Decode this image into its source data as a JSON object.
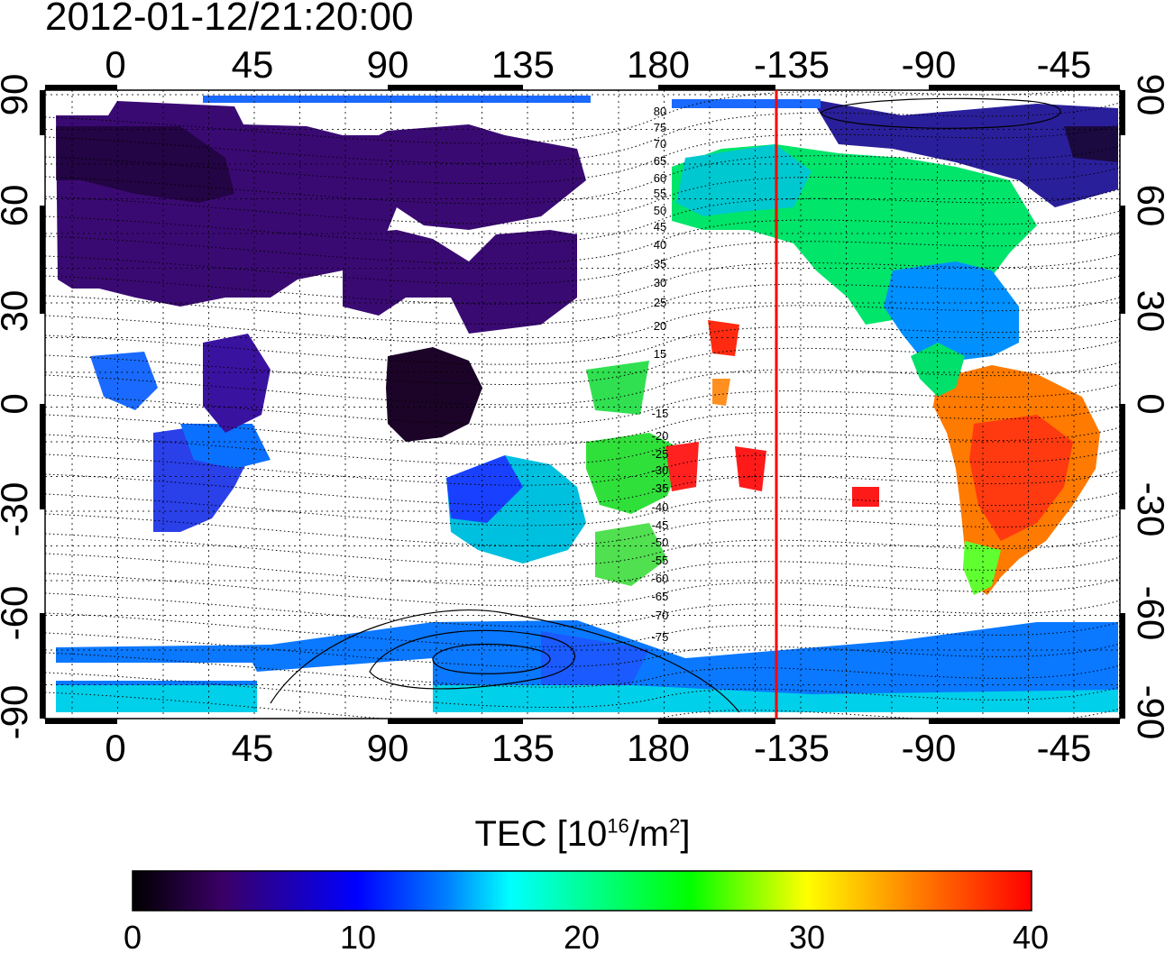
{
  "title": "2012-01-12/21:20:00",
  "map": {
    "top_lon_ticks": [
      "0",
      "45",
      "90",
      "135",
      "180",
      "-135",
      "-90",
      "-45"
    ],
    "bottom_lon_ticks": [
      "0",
      "45",
      "90",
      "135",
      "180",
      "-135",
      "-90",
      "-45"
    ],
    "left_lat_ticks": [
      "90",
      "60",
      "30",
      "0",
      "-30",
      "-60",
      "-90"
    ],
    "right_lat_ticks": [
      "90",
      "60",
      "30",
      "0",
      "-30",
      "-60",
      "-90"
    ],
    "contour_labels": [
      "80",
      "75",
      "70",
      "65",
      "60",
      "55",
      "50",
      "45",
      "40",
      "35",
      "30",
      "25",
      "20",
      "15",
      "-15",
      "-20",
      "-25",
      "-30",
      "-35",
      "-40",
      "-45",
      "-50",
      "-55",
      "-60",
      "-65",
      "-70",
      "-75"
    ],
    "terminator_longitude": -140,
    "terminator_color": "#ff0000"
  },
  "colorbar": {
    "title_prefix": "TEC  [10",
    "title_exp1": "16",
    "title_mid": "/m",
    "title_exp2": "2",
    "title_suffix": "]",
    "ticks": [
      "0",
      "10",
      "20",
      "30",
      "40"
    ],
    "range": [
      0,
      40
    ],
    "colors": [
      "#000000",
      "#3a0066",
      "#0000ff",
      "#0080ff",
      "#00ffff",
      "#00ff80",
      "#00ff00",
      "#ffff00",
      "#ff8000",
      "#ff0000"
    ]
  },
  "tec_regions": [
    {
      "region": "north-europe-asia",
      "level": 4
    },
    {
      "region": "north-america",
      "level": 22
    },
    {
      "region": "south-america",
      "level": 35
    },
    {
      "region": "australia",
      "level": 16
    },
    {
      "region": "africa",
      "level": 11
    },
    {
      "region": "south-asia",
      "level": 1
    },
    {
      "region": "antarctica",
      "level": 13
    },
    {
      "region": "south-pacific",
      "level": 25
    }
  ]
}
